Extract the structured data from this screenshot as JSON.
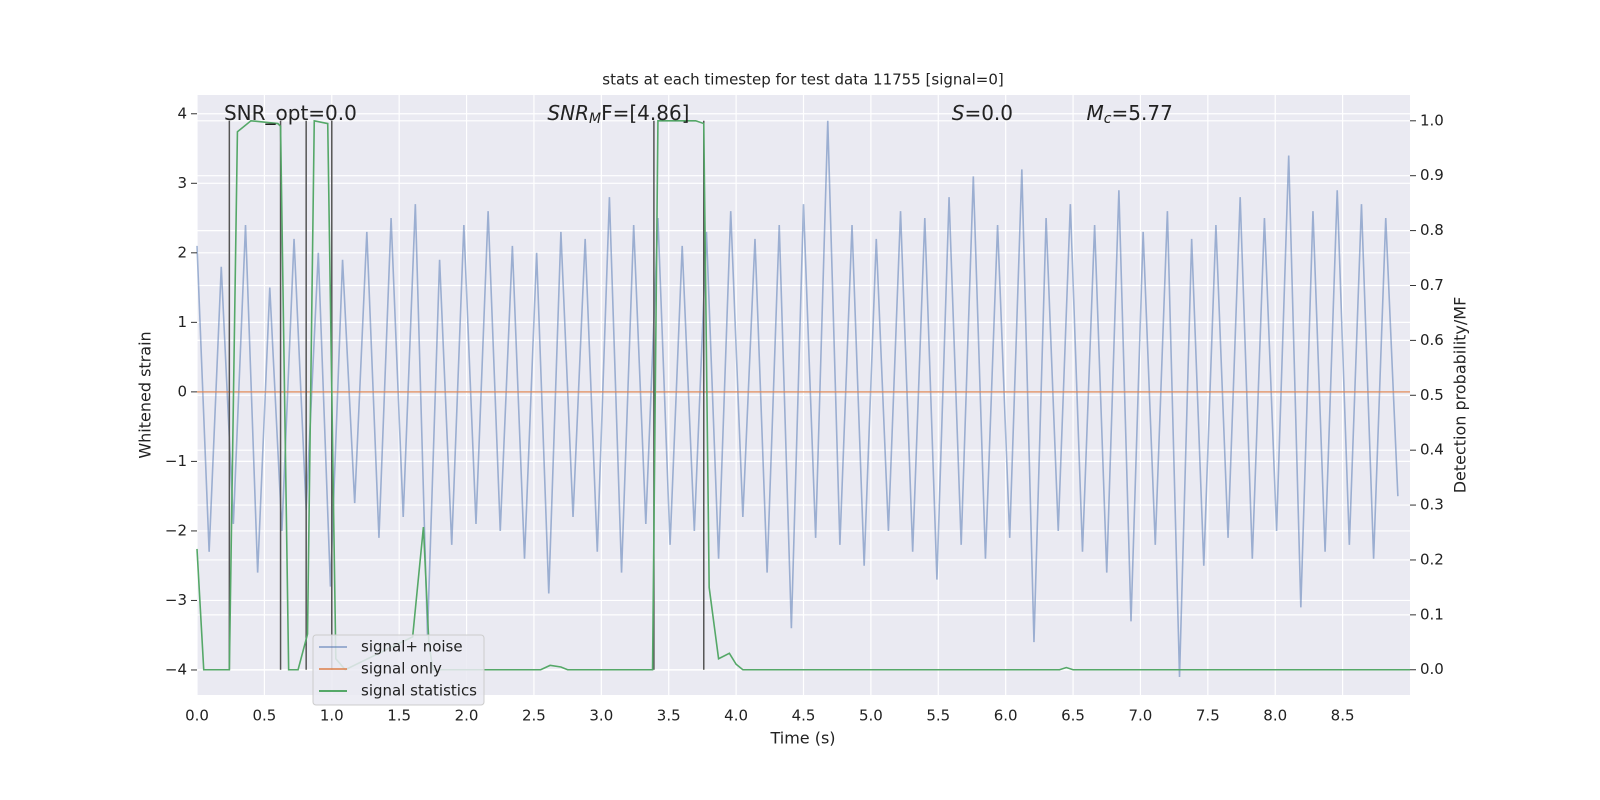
{
  "chart_data": {
    "type": "line",
    "title": "stats at each timestep for test data 11755 [signal=0]",
    "xlabel": "Time (s)",
    "ylabel": "Whitened strain",
    "y2label": "Detection probability/MF",
    "background": "#eaeaf2",
    "grid": true,
    "legend": "lower left",
    "xlim": [
      0,
      9.0
    ],
    "ylim": [
      -4.36,
      4.27
    ],
    "y2lim": [
      -0.046,
      1.047
    ],
    "xticks": [
      {
        "value": 0,
        "label": "0.0"
      },
      0.5,
      {
        "value": 1,
        "label": "1.0"
      },
      1.5,
      {
        "value": 2,
        "label": "2.0"
      },
      2.5,
      {
        "value": 3,
        "label": "3.0"
      },
      3.5,
      {
        "value": 4,
        "label": "4.0"
      },
      4.5,
      {
        "value": 5,
        "label": "5.0"
      },
      5.5,
      {
        "value": 6,
        "label": "6.0"
      },
      6.5,
      {
        "value": 7,
        "label": "7.0"
      },
      7.5,
      {
        "value": 8,
        "label": "8.0"
      },
      8.5
    ],
    "yticks": [
      {
        "value": -4,
        "label": "−4"
      },
      {
        "value": -3,
        "label": "−3"
      },
      {
        "value": -2,
        "label": "−2"
      },
      {
        "value": -1,
        "label": "−1"
      },
      0,
      1,
      2,
      3,
      4
    ],
    "y2ticks": [
      {
        "value": 0,
        "label": "0.0"
      },
      0.1,
      0.2,
      0.3,
      0.4,
      0.5,
      0.6,
      0.7,
      0.8,
      0.9,
      {
        "value": 1,
        "label": "1.0"
      }
    ],
    "series": [
      {
        "name": "signal+ noise",
        "color": "#4c72b0",
        "opacity": 0.5,
        "x": [
          0,
          0.09,
          0.18,
          0.27,
          0.36,
          0.45,
          0.54,
          0.63,
          0.72,
          0.81,
          0.9,
          0.99,
          1.08,
          1.17,
          1.26,
          1.35,
          1.44,
          1.53,
          1.62,
          1.71,
          1.8,
          1.89,
          1.98,
          2.07,
          2.16,
          2.25,
          2.34,
          2.43,
          2.52,
          2.61,
          2.7,
          2.79,
          2.88,
          2.97,
          3.06,
          3.15,
          3.24,
          3.33,
          3.42,
          3.51,
          3.6,
          3.69,
          3.78,
          3.87,
          3.96,
          4.05,
          4.14,
          4.23,
          4.32,
          4.41,
          4.5,
          4.59,
          4.68,
          4.77,
          4.86,
          4.95,
          5.04,
          5.13,
          5.22,
          5.31,
          5.4,
          5.49,
          5.58,
          5.67,
          5.76,
          5.85,
          5.94,
          6.03,
          6.12,
          6.21,
          6.3,
          6.39,
          6.48,
          6.57,
          6.66,
          6.75,
          6.84,
          6.93,
          7.02,
          7.11,
          7.2,
          7.29,
          7.38,
          7.47,
          7.56,
          7.65,
          7.74,
          7.83,
          7.92,
          8.01,
          8.1,
          8.19,
          8.28,
          8.37,
          8.46,
          8.55,
          8.64,
          8.73,
          8.82,
          8.91
        ],
        "values": [
          2.1,
          -2.3,
          1.8,
          -1.9,
          2.4,
          -2.6,
          1.5,
          -2.0,
          2.2,
          -1.7,
          2.0,
          -2.8,
          1.9,
          -1.6,
          2.3,
          -2.1,
          2.5,
          -1.8,
          2.7,
          -3.5,
          1.9,
          -2.2,
          2.4,
          -1.9,
          2.6,
          -2.0,
          2.1,
          -2.4,
          2.0,
          -2.9,
          2.3,
          -1.8,
          2.2,
          -2.3,
          2.8,
          -2.6,
          2.4,
          -1.9,
          2.5,
          -2.2,
          2.1,
          -2.0,
          2.3,
          -2.4,
          2.6,
          -1.8,
          2.2,
          -2.6,
          2.4,
          -3.4,
          2.7,
          -2.1,
          3.9,
          -2.2,
          2.4,
          -2.5,
          2.2,
          -2.0,
          2.6,
          -2.3,
          2.5,
          -2.7,
          2.8,
          -2.2,
          3.1,
          -2.4,
          2.4,
          -2.1,
          3.2,
          -3.6,
          2.5,
          -2.0,
          2.7,
          -2.3,
          2.4,
          -2.6,
          2.9,
          -3.3,
          2.3,
          -2.2,
          2.6,
          -4.1,
          2.2,
          -2.5,
          2.4,
          -2.1,
          2.8,
          -2.4,
          2.5,
          -2.0,
          3.4,
          -3.1,
          2.6,
          -2.3,
          2.9,
          -2.2,
          2.7,
          -2.4,
          2.5,
          -1.5
        ]
      },
      {
        "name": "signal only",
        "color": "#dd8452",
        "opacity": 0.8,
        "x": [
          0,
          9.0
        ],
        "values": [
          0,
          0
        ]
      },
      {
        "name": "signal statistics",
        "color": "#55a868",
        "opacity": 1,
        "axis": "y2",
        "x": [
          0,
          0.05,
          0.24,
          0.3,
          0.4,
          0.6,
          0.62,
          0.68,
          0.75,
          0.82,
          0.87,
          0.97,
          1.03,
          1.1,
          1.6,
          1.68,
          1.72,
          1.75,
          2.55,
          2.62,
          2.7,
          2.75,
          3.38,
          3.42,
          3.7,
          3.76,
          3.8,
          3.87,
          3.95,
          4.0,
          4.05,
          6.4,
          6.45,
          6.5,
          9.0
        ],
        "values": [
          0.22,
          0,
          0,
          0.98,
          1.0,
          0.995,
          0.99,
          0,
          0,
          0.065,
          1.0,
          0.995,
          0.02,
          0.0,
          0.06,
          0.26,
          0.05,
          0,
          0,
          0.008,
          0.005,
          0,
          0,
          1.0,
          1.0,
          0.995,
          0.15,
          0.02,
          0.03,
          0.01,
          0,
          0,
          0.004,
          0,
          0
        ]
      }
    ],
    "vlines": {
      "color": "#555555",
      "x": [
        0.24,
        0.62,
        0.81,
        1.0,
        3.39,
        3.76
      ],
      "span": [
        0,
        1
      ]
    },
    "annotations": [
      {
        "x": 0.2,
        "text": "SNR_opt=0.0"
      },
      {
        "x": 2.6,
        "var": "SNR",
        "sub": "M",
        "rest": "F=[4.86]"
      },
      {
        "x": 5.6,
        "var": "S",
        "rest": "=0.0"
      },
      {
        "x": 6.6,
        "var": "M",
        "sub": "c",
        "rest": "=5.77"
      }
    ]
  }
}
